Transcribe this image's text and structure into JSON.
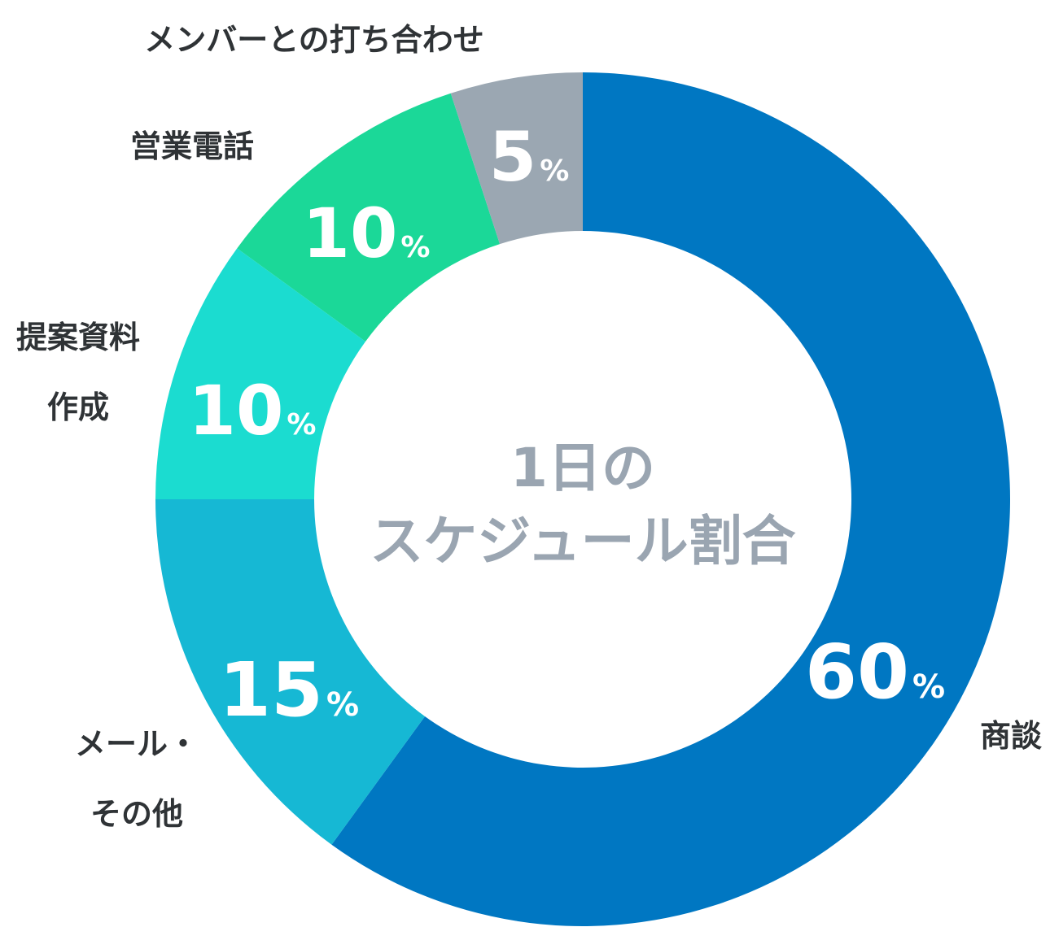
{
  "chart_data": {
    "type": "pie",
    "donut": true,
    "center_title_lines": [
      "1日の",
      "スケジュール割合"
    ],
    "unit": "%",
    "slices": [
      {
        "label_lines": [
          "商談"
        ],
        "value": 60,
        "display": "60",
        "color": "#0077c2"
      },
      {
        "label_lines": [
          "メール・",
          "その他"
        ],
        "value": 15,
        "display": "15",
        "color": "#16b8d4"
      },
      {
        "label_lines": [
          "提案資料",
          "作成"
        ],
        "value": 10,
        "display": "10",
        "color": "#1bdcd0"
      },
      {
        "label_lines": [
          "営業電話"
        ],
        "value": 10,
        "display": "10",
        "color": "#1bd898"
      },
      {
        "label_lines": [
          "メンバーとの打ち合わせ"
        ],
        "value": 5,
        "display": "5",
        "color": "#9ba7b2"
      }
    ]
  }
}
